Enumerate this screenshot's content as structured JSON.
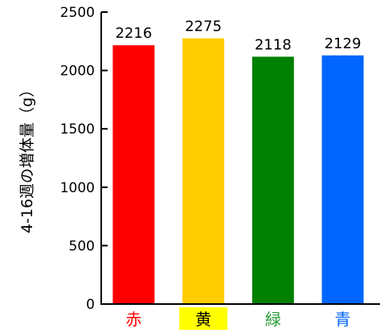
{
  "chart_data": {
    "type": "bar",
    "categories": [
      "赤",
      "黄",
      "緑",
      "青"
    ],
    "values": [
      2216,
      2275,
      2118,
      2129
    ],
    "data_labels": [
      "2216",
      "2275",
      "2118",
      "2129"
    ],
    "bar_colors": [
      "#ff0000",
      "#ffcc00",
      "#008000",
      "#0066ff"
    ],
    "category_label_colors": [
      "#ff0000",
      "#000000",
      "#2e9e3a",
      "#0066ff"
    ],
    "category_label_highlight": [
      null,
      "#ffff00",
      null,
      null
    ],
    "title": "",
    "xlabel": "",
    "ylabel": "4-16週の増体量（g）",
    "ylim": [
      0,
      2500
    ],
    "yticks": [
      "0",
      "500",
      "1000",
      "1500",
      "2000",
      "2500"
    ],
    "grid": false,
    "legend": "none"
  }
}
